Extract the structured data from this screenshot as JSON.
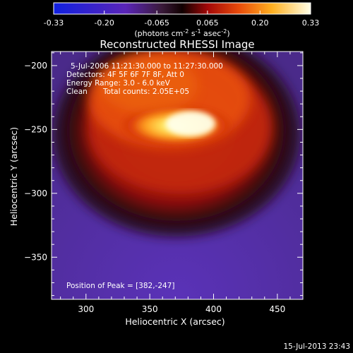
{
  "colorbar": {
    "ticks": [
      "-0.33",
      "-0.20",
      "-0.065",
      "0.065",
      "0.20",
      "0.33"
    ],
    "tick_values": [
      -0.33,
      -0.2,
      -0.065,
      0.065,
      0.2,
      0.33
    ],
    "range": [
      -0.33,
      0.33
    ],
    "units_main": "(photons cm",
    "units_sup1": "-2",
    "units_mid1": " s",
    "units_sup2": "-1",
    "units_mid2": " asec",
    "units_sup3": "-2",
    "units_end": ")"
  },
  "chart_data": {
    "type": "heatmap",
    "title": "Reconstructed RHESSI Image",
    "xlabel": "Heliocentric X (arcsec)",
    "ylabel": "Heliocentric Y (arcsec)",
    "xlim": [
      273,
      470
    ],
    "ylim": [
      -383,
      -189
    ],
    "x_ticks": [
      300,
      350,
      400,
      450
    ],
    "y_ticks": [
      -200,
      -250,
      -300,
      -350
    ],
    "x_tick_labels": [
      "300",
      "350",
      "400",
      "450"
    ],
    "y_tick_labels": [
      "−200",
      "−250",
      "−300",
      "−350"
    ],
    "peak": [
      382,
      -247
    ],
    "colormap": [
      "#1a22d8",
      "#6a2aa8",
      "#5a2a5a",
      "#3a1014",
      "#a41208",
      "#e44a0a",
      "#ff9a18",
      "#ffe050",
      "#ffffee"
    ],
    "annotations": {
      "time": "5-Jul-2006 11:21:30.000 to 11:27:30.000",
      "detectors": "Detectors: 4F 5F 6F 7F 8F, Att 0",
      "energy": "Energy Range: 3.0 - 6.0 keV",
      "clean": "Clean",
      "counts": "Total counts: 2.05E+05",
      "peak_label": "Position of Peak = [382,-247]"
    }
  },
  "footer": {
    "timestamp": "15-Jul-2013 23:43"
  }
}
